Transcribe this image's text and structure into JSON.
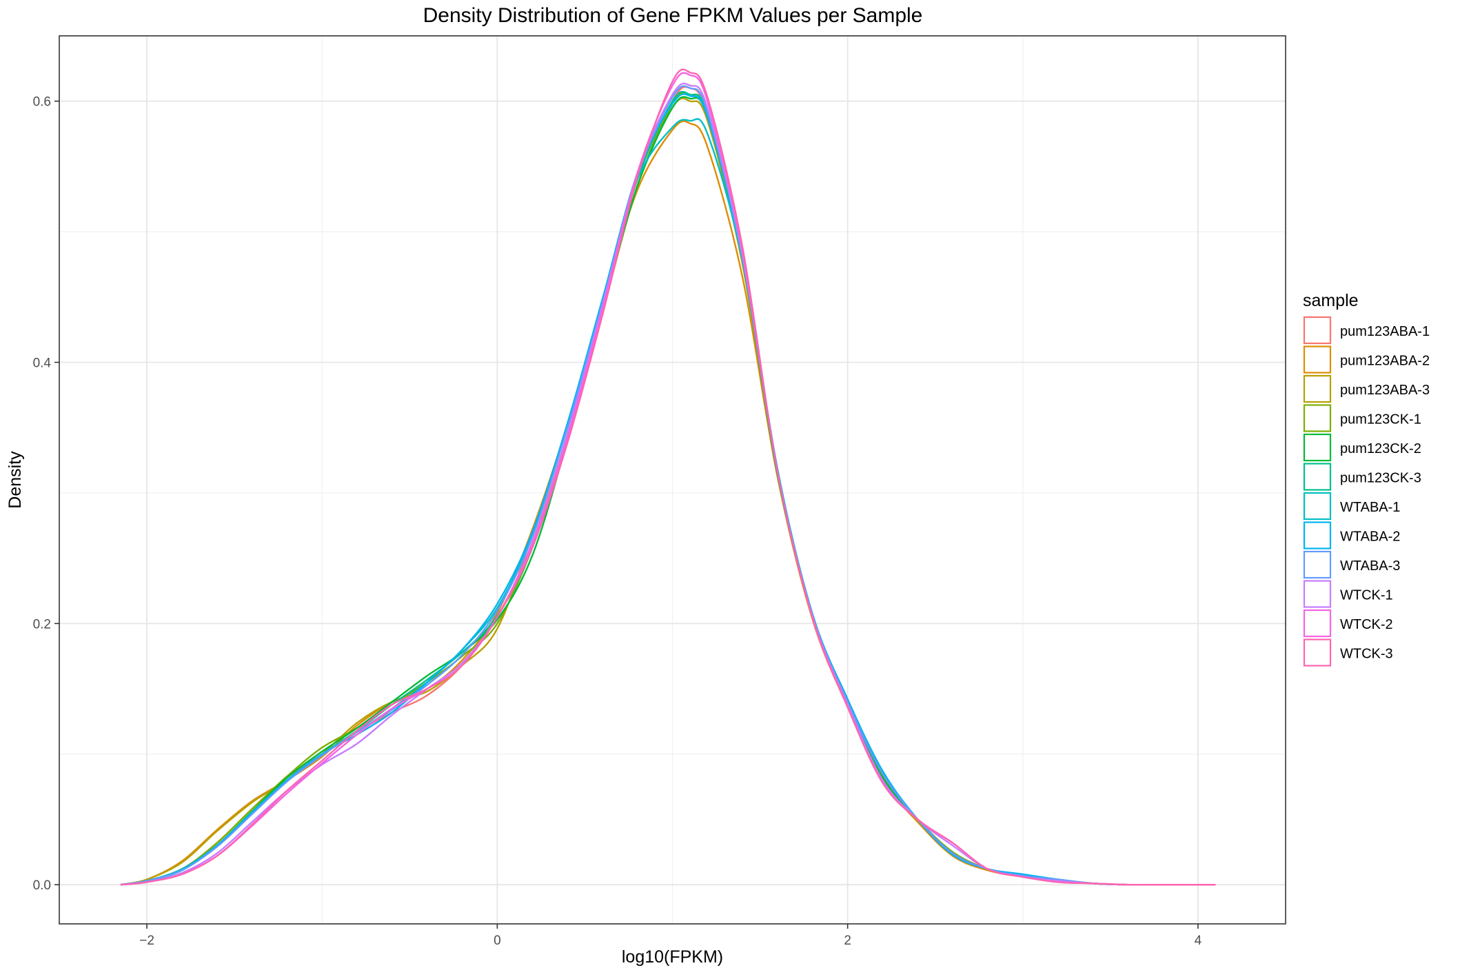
{
  "chart_data": {
    "type": "line",
    "title": "Density Distribution of Gene FPKM Values per Sample",
    "xlabel": "log10(FPKM)",
    "ylabel": "Density",
    "xlim": [
      -2.5,
      4.5
    ],
    "ylim": [
      -0.03,
      0.65
    ],
    "x_ticks": [
      {
        "value": -2,
        "label": "−2"
      },
      {
        "value": 0,
        "label": "0"
      },
      {
        "value": 2,
        "label": "2"
      },
      {
        "value": 4,
        "label": "4"
      }
    ],
    "y_ticks": [
      {
        "value": 0.0,
        "label": "0.0"
      },
      {
        "value": 0.2,
        "label": "0.2"
      },
      {
        "value": 0.4,
        "label": "0.4"
      },
      {
        "value": 0.6,
        "label": "0.6"
      }
    ],
    "x_minor": [
      -1,
      1,
      3
    ],
    "y_minor": [
      0.1,
      0.3,
      0.5
    ],
    "grid": true,
    "legend": {
      "title": "sample",
      "position": "right"
    },
    "x": [
      -2.15,
      -2.0,
      -1.8,
      -1.6,
      -1.4,
      -1.2,
      -1.0,
      -0.8,
      -0.6,
      -0.4,
      -0.2,
      0.0,
      0.2,
      0.4,
      0.6,
      0.8,
      1.0,
      1.1,
      1.2,
      1.4,
      1.6,
      1.8,
      2.0,
      2.2,
      2.4,
      2.6,
      2.8,
      3.0,
      3.2,
      3.4,
      3.6,
      3.8,
      4.1
    ],
    "series": [
      {
        "name": "pum123ABA-1",
        "color": "#F8766D",
        "values": [
          0,
          0.003,
          0.012,
          0.032,
          0.058,
          0.082,
          0.1,
          0.117,
          0.132,
          0.145,
          0.168,
          0.205,
          0.262,
          0.345,
          0.44,
          0.535,
          0.6,
          0.61,
          0.59,
          0.48,
          0.315,
          0.205,
          0.138,
          0.082,
          0.05,
          0.025,
          0.012,
          0.006,
          0.003,
          0.001,
          0,
          0,
          0
        ]
      },
      {
        "name": "pum123ABA-2",
        "color": "#DE8C00",
        "values": [
          0,
          0.004,
          0.018,
          0.042,
          0.064,
          0.08,
          0.098,
          0.122,
          0.14,
          0.15,
          0.172,
          0.208,
          0.272,
          0.352,
          0.445,
          0.532,
          0.578,
          0.583,
          0.565,
          0.465,
          0.312,
          0.203,
          0.136,
          0.08,
          0.048,
          0.022,
          0.011,
          0.006,
          0.003,
          0.001,
          0,
          0,
          0
        ]
      },
      {
        "name": "pum123ABA-3",
        "color": "#B79F00",
        "values": [
          0,
          0.004,
          0.017,
          0.041,
          0.063,
          0.08,
          0.1,
          0.124,
          0.14,
          0.148,
          0.168,
          0.196,
          0.268,
          0.35,
          0.442,
          0.535,
          0.595,
          0.6,
          0.585,
          0.475,
          0.315,
          0.205,
          0.137,
          0.081,
          0.049,
          0.024,
          0.012,
          0.006,
          0.003,
          0.001,
          0,
          0,
          0
        ]
      },
      {
        "name": "pum123CK-1",
        "color": "#7CAE00",
        "values": [
          0,
          0.003,
          0.012,
          0.032,
          0.058,
          0.083,
          0.105,
          0.12,
          0.138,
          0.155,
          0.175,
          0.2,
          0.258,
          0.34,
          0.438,
          0.535,
          0.598,
          0.605,
          0.59,
          0.48,
          0.315,
          0.205,
          0.139,
          0.083,
          0.05,
          0.025,
          0.012,
          0.007,
          0.004,
          0.001,
          0,
          0,
          0
        ]
      },
      {
        "name": "pum123CK-2",
        "color": "#00BA38",
        "values": [
          0,
          0.003,
          0.011,
          0.03,
          0.056,
          0.082,
          0.102,
          0.12,
          0.14,
          0.16,
          0.178,
          0.203,
          0.252,
          0.34,
          0.44,
          0.535,
          0.595,
          0.602,
          0.588,
          0.478,
          0.314,
          0.205,
          0.138,
          0.082,
          0.05,
          0.024,
          0.012,
          0.006,
          0.003,
          0.001,
          0,
          0,
          0
        ]
      },
      {
        "name": "pum123CK-3",
        "color": "#00C08B",
        "values": [
          0,
          0.003,
          0.011,
          0.03,
          0.056,
          0.08,
          0.1,
          0.118,
          0.138,
          0.157,
          0.178,
          0.206,
          0.258,
          0.345,
          0.445,
          0.54,
          0.6,
          0.605,
          0.59,
          0.48,
          0.315,
          0.205,
          0.14,
          0.085,
          0.05,
          0.024,
          0.012,
          0.007,
          0.004,
          0.001,
          0,
          0,
          0
        ]
      },
      {
        "name": "WTABA-1",
        "color": "#00BFC4",
        "values": [
          0,
          0.003,
          0.012,
          0.03,
          0.055,
          0.08,
          0.1,
          0.117,
          0.135,
          0.155,
          0.18,
          0.212,
          0.268,
          0.352,
          0.448,
          0.54,
          0.58,
          0.585,
          0.575,
          0.478,
          0.318,
          0.207,
          0.142,
          0.087,
          0.05,
          0.023,
          0.012,
          0.008,
          0.004,
          0.001,
          0,
          0,
          0
        ]
      },
      {
        "name": "WTABA-2",
        "color": "#00B4F0",
        "values": [
          0,
          0.003,
          0.011,
          0.03,
          0.055,
          0.08,
          0.1,
          0.115,
          0.132,
          0.155,
          0.18,
          0.215,
          0.27,
          0.353,
          0.448,
          0.545,
          0.598,
          0.604,
          0.588,
          0.48,
          0.318,
          0.207,
          0.142,
          0.087,
          0.05,
          0.023,
          0.012,
          0.008,
          0.004,
          0.001,
          0,
          0,
          0
        ]
      },
      {
        "name": "WTABA-3",
        "color": "#619CFF",
        "values": [
          0,
          0.003,
          0.011,
          0.029,
          0.054,
          0.079,
          0.099,
          0.117,
          0.134,
          0.153,
          0.176,
          0.21,
          0.266,
          0.35,
          0.445,
          0.543,
          0.603,
          0.61,
          0.592,
          0.48,
          0.316,
          0.206,
          0.14,
          0.085,
          0.05,
          0.024,
          0.012,
          0.007,
          0.004,
          0.001,
          0,
          0,
          0
        ]
      },
      {
        "name": "WTCK-1",
        "color": "#C77CFF",
        "values": [
          0,
          0.002,
          0.009,
          0.024,
          0.048,
          0.072,
          0.092,
          0.108,
          0.13,
          0.15,
          0.17,
          0.205,
          0.26,
          0.345,
          0.443,
          0.545,
          0.605,
          0.612,
          0.595,
          0.482,
          0.316,
          0.205,
          0.138,
          0.08,
          0.05,
          0.03,
          0.012,
          0.006,
          0.003,
          0.001,
          0,
          0,
          0
        ]
      },
      {
        "name": "WTCK-2",
        "color": "#F564E3",
        "values": [
          0,
          0.002,
          0.008,
          0.022,
          0.045,
          0.07,
          0.093,
          0.115,
          0.135,
          0.15,
          0.168,
          0.205,
          0.262,
          0.342,
          0.44,
          0.545,
          0.612,
          0.62,
          0.6,
          0.485,
          0.316,
          0.204,
          0.136,
          0.078,
          0.05,
          0.032,
          0.012,
          0.006,
          0.002,
          0.001,
          0,
          0,
          0
        ]
      },
      {
        "name": "WTCK-3",
        "color": "#FF64B0",
        "values": [
          0,
          0.002,
          0.008,
          0.022,
          0.046,
          0.072,
          0.095,
          0.118,
          0.138,
          0.15,
          0.168,
          0.205,
          0.258,
          0.338,
          0.436,
          0.542,
          0.615,
          0.622,
          0.603,
          0.488,
          0.316,
          0.204,
          0.136,
          0.078,
          0.05,
          0.032,
          0.012,
          0.006,
          0.002,
          0.001,
          0,
          0,
          0
        ]
      }
    ]
  }
}
